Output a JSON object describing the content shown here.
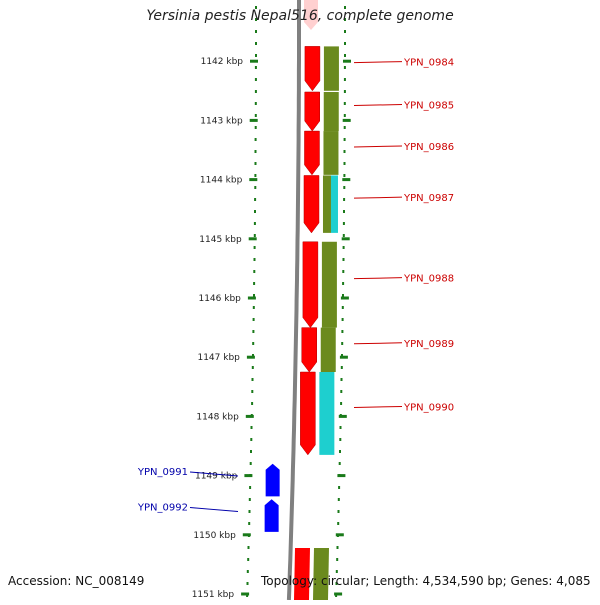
{
  "title": "Yersinia pestis Nepal516, complete genome",
  "footer": {
    "accession": "Accession: NC_008149",
    "summary": "Topology: circular; Length: 4,534,590 bp; Genes: 4,085"
  },
  "ruler": {
    "labels": [
      "1142 kbp",
      "1143 kbp",
      "1144 kbp",
      "1145 kbp",
      "1146 kbp",
      "1147 kbp",
      "1148 kbp",
      "1149 kbp",
      "1150 kbp",
      "1151 kbp"
    ],
    "start_kbp": 1141.0,
    "color": "#1a7a1a"
  },
  "genes_forward": [
    {
      "name": "YPN_0984",
      "start": 1141.75,
      "end": 1142.5,
      "cds_color": "#ff0000",
      "cog_color": "#6b8a1e"
    },
    {
      "name": "YPN_0985",
      "start": 1142.52,
      "end": 1143.18,
      "cds_color": "#ff0000",
      "cog_color": "#6b8a1e"
    },
    {
      "name": "YPN_0986",
      "start": 1143.18,
      "end": 1143.92,
      "cds_color": "#ff0000",
      "cog_color": "#6b8a1e"
    },
    {
      "name": "YPN_0987",
      "start": 1143.93,
      "end": 1144.9,
      "cds_color": "#ff0000",
      "cog_color": "#6b8a1e",
      "cog_color2": "#1ecfcf"
    },
    {
      "name": "YPN_0988",
      "start": 1145.05,
      "end": 1146.5,
      "cds_color": "#ff0000",
      "cog_color": "#6b8a1e"
    },
    {
      "name": "YPN_0989",
      "start": 1146.5,
      "end": 1147.25,
      "cds_color": "#ff0000",
      "cog_color": "#6b8a1e"
    },
    {
      "name": "YPN_0990",
      "start": 1147.25,
      "end": 1148.65,
      "cds_color": "#ff0000",
      "cog_color": "#1ecfcf"
    }
  ],
  "genes_reverse": [
    {
      "name": "YPN_0991",
      "start": 1148.8,
      "end": 1149.35,
      "color": "#0000ff"
    },
    {
      "name": "YPN_0992",
      "start": 1149.4,
      "end": 1149.95,
      "color": "#0000ff"
    }
  ],
  "gene_label_colors": {
    "forward": "#cc0000",
    "reverse": "#0000aa"
  }
}
